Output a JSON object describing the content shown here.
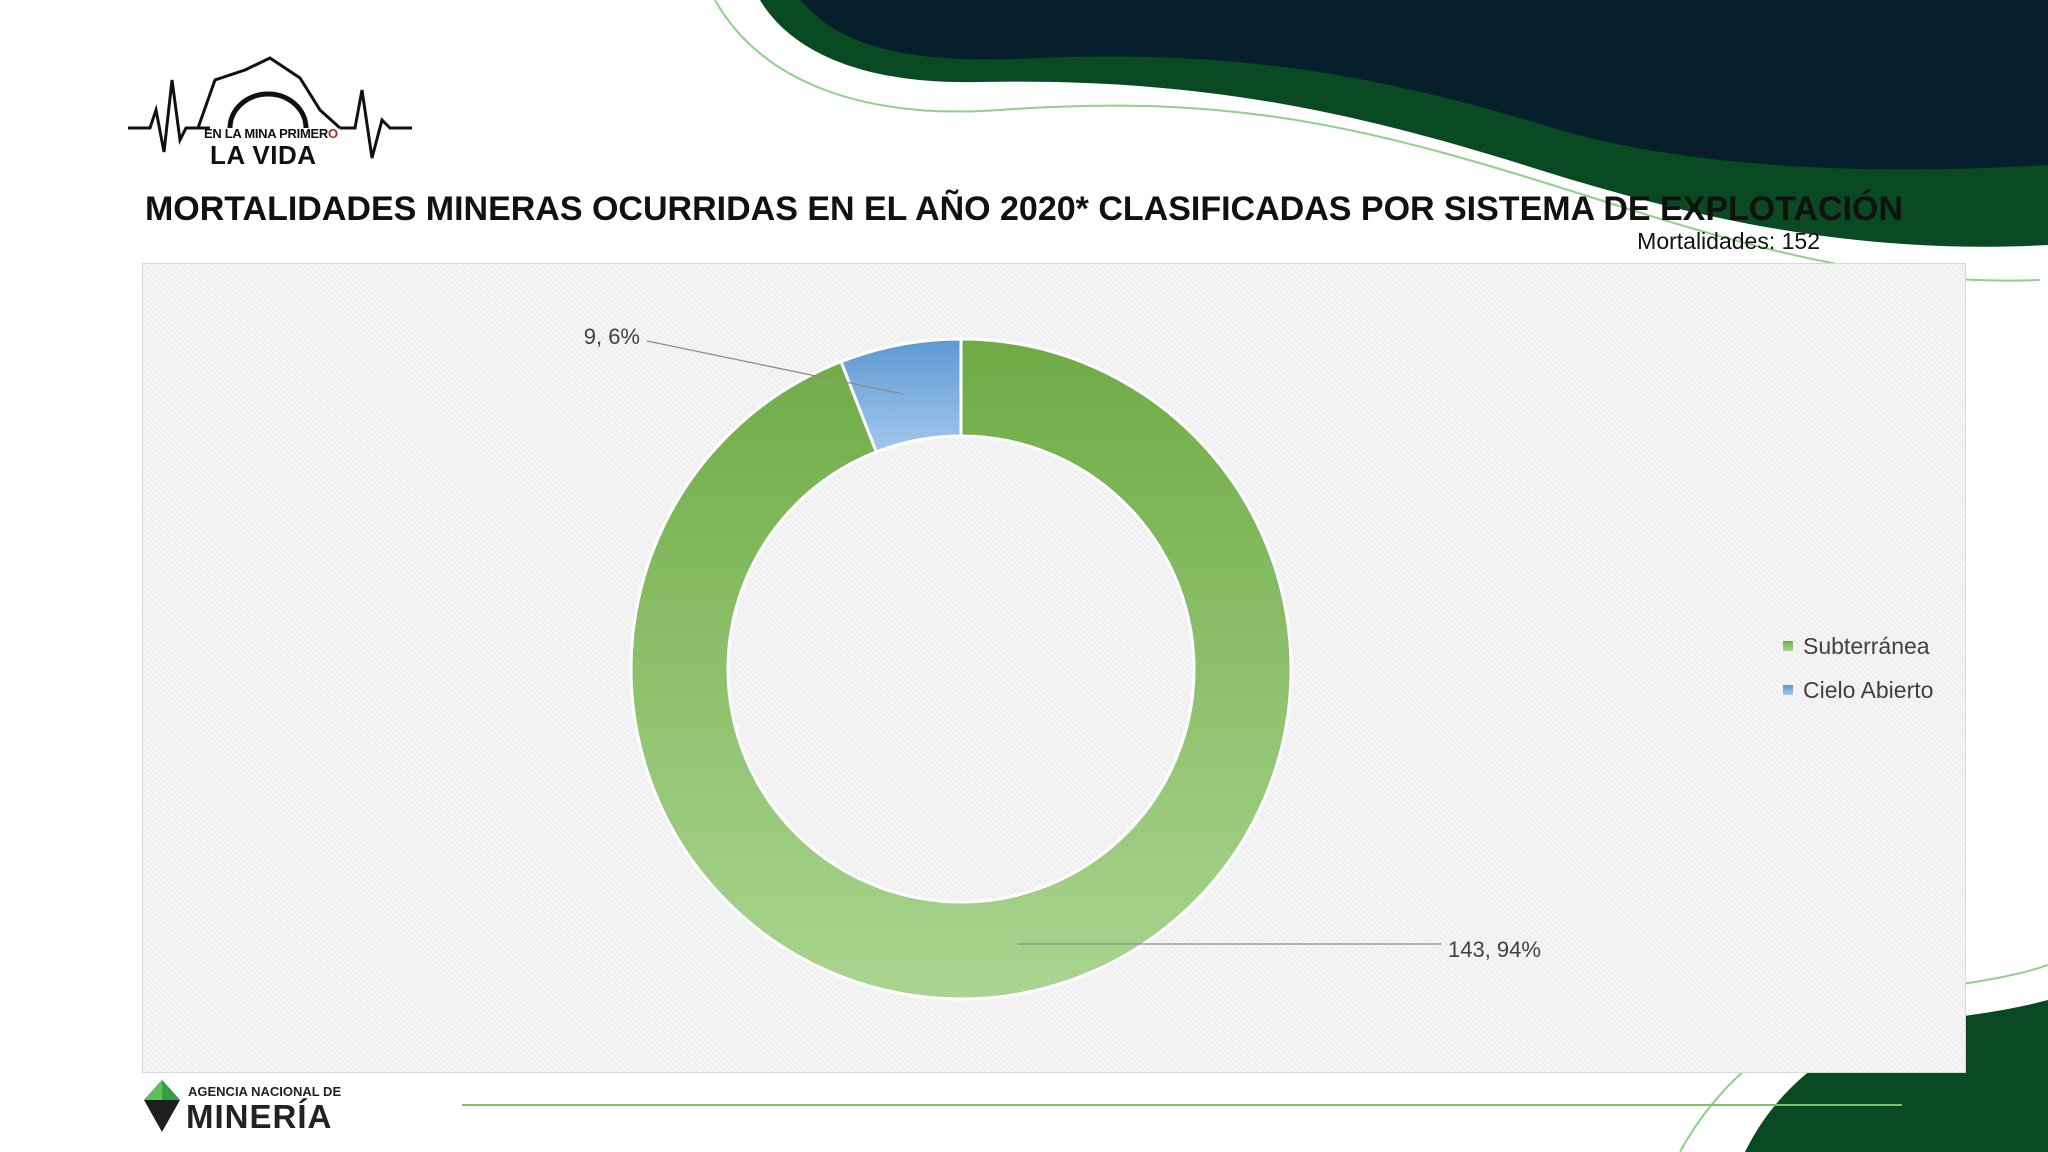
{
  "title": "MORTALIDADES MINERAS OCURRIDAS EN EL AÑO 2020* CLASIFICADAS POR SISTEMA DE EXPLOTACIÓN",
  "total_label": "Mortalidades: 152",
  "logo_top": {
    "line1_a": "EN LA MINA PRIMER",
    "line1_b": "O",
    "line2": "LA VIDA"
  },
  "logo_bottom": {
    "line1": "AGENCIA NACIONAL DE",
    "line2": "MINERÍA"
  },
  "colors": {
    "subterranea": "#7cb356",
    "cielo_abierto": "#6a9fd4",
    "dark_green": "#0a4a23",
    "navy": "#061f2b",
    "light_green": "#7cc16a"
  },
  "chart_data": {
    "type": "doughnut",
    "categories": [
      "Subterránea",
      "Cielo Abierto"
    ],
    "values": [
      143,
      9
    ],
    "percents": [
      94,
      6
    ],
    "data_labels": [
      "143, 94%",
      "9, 6%"
    ],
    "legend": [
      "Subterránea",
      "Cielo Abierto"
    ],
    "legend_position": "right"
  }
}
